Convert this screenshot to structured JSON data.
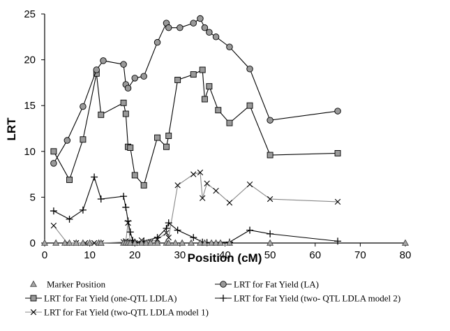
{
  "chart_data": {
    "type": "line",
    "xlabel": "Position (cM)",
    "ylabel": "LRT",
    "xlim": [
      0,
      80
    ],
    "ylim": [
      0,
      25
    ],
    "x_ticks": [
      "0",
      "10",
      "20",
      "30",
      "40",
      "50",
      "60",
      "70",
      "80"
    ],
    "y_ticks": [
      "0",
      "5",
      "10",
      "15",
      "20",
      "25"
    ],
    "grid": false,
    "legend_position": "bottom",
    "series": [
      {
        "name": "Marker Position",
        "marker": "triangle",
        "line": false,
        "color": "#888888",
        "x": [
          0,
          2.5,
          4.5,
          5.5,
          7,
          8.5,
          10,
          12,
          12.5,
          17.5,
          18,
          18.5,
          19,
          20,
          21.5,
          22.5,
          23.5,
          25,
          27,
          27.5,
          29,
          30.5,
          32.5,
          34.5,
          35.5,
          37,
          38,
          39,
          41,
          50,
          80
        ],
        "y": [
          0,
          0,
          0,
          0,
          0,
          0,
          0,
          0,
          0,
          0,
          0,
          0,
          0,
          0,
          0,
          0,
          0,
          0,
          0,
          0,
          0,
          0,
          0,
          0,
          0,
          0,
          0,
          0,
          0,
          0,
          0
        ]
      },
      {
        "name": "LRT for Fat Yield (LA)",
        "marker": "circle",
        "line": true,
        "color": "#000000",
        "x": [
          2,
          5,
          8.5,
          11.5,
          13,
          17.5,
          18,
          18.5,
          20,
          22,
          25,
          27,
          27.5,
          30,
          33,
          34.5,
          35.5,
          36.5,
          38,
          41,
          45.5,
          50,
          65
        ],
        "y": [
          8.7,
          11.2,
          14.9,
          18.9,
          19.9,
          19.5,
          17.3,
          16.9,
          18,
          18.2,
          21.9,
          24,
          23.5,
          23.5,
          24,
          24.5,
          23.5,
          23,
          22.5,
          21.4,
          19,
          13.4,
          14.4
        ]
      },
      {
        "name": "LRT for Fat Yield (one-QTL LDLA)",
        "marker": "square",
        "line": true,
        "color": "#000000",
        "x": [
          2,
          5.5,
          8.5,
          11.5,
          12.5,
          17.5,
          18,
          18.5,
          19,
          20,
          22,
          25,
          27,
          27.5,
          29.5,
          33,
          35,
          35.5,
          36.5,
          38.5,
          41,
          45.5,
          50,
          65
        ],
        "y": [
          10,
          6.9,
          11.3,
          18.5,
          14,
          15.3,
          14.1,
          10.5,
          10.4,
          7.4,
          6.3,
          11.5,
          10.5,
          11.7,
          17.8,
          18.4,
          18.9,
          15.7,
          17.1,
          14.5,
          13.1,
          15,
          9.6,
          9.8
        ]
      },
      {
        "name": "LRT for Fat Yield (two- QTL LDLA model 2)",
        "marker": "plus",
        "line": true,
        "color": "#000000",
        "x": [
          2,
          5.5,
          8.5,
          11,
          12.5,
          17.5,
          18,
          18.5,
          19,
          19.5,
          20,
          22,
          25,
          27,
          27.5,
          29.5,
          33,
          35,
          36,
          41,
          45.5,
          50,
          65
        ],
        "y": [
          3.5,
          2.6,
          3.6,
          7.2,
          4.8,
          5.1,
          3.9,
          2.4,
          1.2,
          0.3,
          0.1,
          0.2,
          0.6,
          1.6,
          2.2,
          1.4,
          0.6,
          0.1,
          0.05,
          0.1,
          1.4,
          1,
          0.2
        ]
      },
      {
        "name": "LRT for Fat Yield (two-QTL LDLA model 1)",
        "marker": "x",
        "line": true,
        "color": "#888888",
        "x": [
          2,
          5,
          7,
          9,
          11,
          12.5,
          17.5,
          18,
          18.5,
          19,
          20,
          21.5,
          23.5,
          25,
          27,
          27.5,
          29.5,
          33,
          34.5,
          35,
          36,
          38,
          41,
          45.5,
          50,
          65
        ],
        "y": [
          1.9,
          0,
          0,
          0,
          0,
          0,
          0.1,
          0.2,
          2.2,
          0.1,
          0,
          0.3,
          0.1,
          0.4,
          1.1,
          0.6,
          6.3,
          7.5,
          7.7,
          4.9,
          6.5,
          5.7,
          4.4,
          6.4,
          4.8,
          4.5
        ]
      }
    ]
  }
}
